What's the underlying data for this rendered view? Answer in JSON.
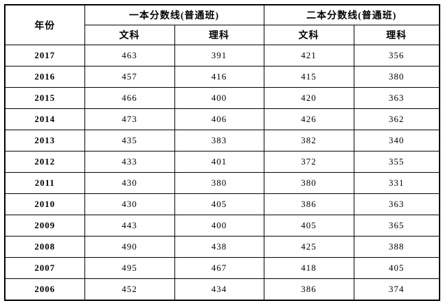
{
  "table": {
    "header": {
      "year": "年份",
      "group1": "一本分数线(普通班)",
      "group2": "二本分数线(普通班)",
      "sub": [
        "文科",
        "理科",
        "文科",
        "理科"
      ]
    },
    "rows": [
      {
        "year": "2017",
        "values": [
          "463",
          "391",
          "421",
          "356"
        ]
      },
      {
        "year": "2016",
        "values": [
          "457",
          "416",
          "415",
          "380"
        ]
      },
      {
        "year": "2015",
        "values": [
          "466",
          "400",
          "420",
          "363"
        ]
      },
      {
        "year": "2014",
        "values": [
          "473",
          "406",
          "426",
          "362"
        ]
      },
      {
        "year": "2013",
        "values": [
          "435",
          "383",
          "382",
          "340"
        ]
      },
      {
        "year": "2012",
        "values": [
          "433",
          "401",
          "372",
          "355"
        ]
      },
      {
        "year": "2011",
        "values": [
          "430",
          "380",
          "380",
          "331"
        ]
      },
      {
        "year": "2010",
        "values": [
          "430",
          "405",
          "386",
          "363"
        ]
      },
      {
        "year": "2009",
        "values": [
          "443",
          "400",
          "405",
          "365"
        ]
      },
      {
        "year": "2008",
        "values": [
          "490",
          "438",
          "425",
          "388"
        ]
      },
      {
        "year": "2007",
        "values": [
          "495",
          "467",
          "418",
          "405"
        ]
      },
      {
        "year": "2006",
        "values": [
          "452",
          "434",
          "386",
          "374"
        ]
      }
    ],
    "colors": {
      "border": "#000000",
      "text": "#000000",
      "background": "#ffffff"
    }
  },
  "chart_data": {
    "type": "table",
    "title": "",
    "columns": [
      "年份",
      "一本分数线(普通班) 文科",
      "一本分数线(普通班) 理科",
      "二本分数线(普通班) 文科",
      "二本分数线(普通班) 理科"
    ],
    "categories": [
      "2017",
      "2016",
      "2015",
      "2014",
      "2013",
      "2012",
      "2011",
      "2010",
      "2009",
      "2008",
      "2007",
      "2006"
    ],
    "series": [
      {
        "name": "一本分数线(普通班) 文科",
        "values": [
          463,
          457,
          466,
          473,
          435,
          433,
          430,
          430,
          443,
          490,
          495,
          452
        ]
      },
      {
        "name": "一本分数线(普通班) 理科",
        "values": [
          391,
          416,
          400,
          406,
          383,
          401,
          380,
          405,
          400,
          438,
          467,
          434
        ]
      },
      {
        "name": "二本分数线(普通班) 文科",
        "values": [
          421,
          415,
          420,
          426,
          382,
          372,
          380,
          386,
          405,
          425,
          418,
          386
        ]
      },
      {
        "name": "二本分数线(普通班) 理科",
        "values": [
          356,
          380,
          363,
          362,
          340,
          355,
          331,
          363,
          365,
          388,
          405,
          374
        ]
      }
    ]
  }
}
